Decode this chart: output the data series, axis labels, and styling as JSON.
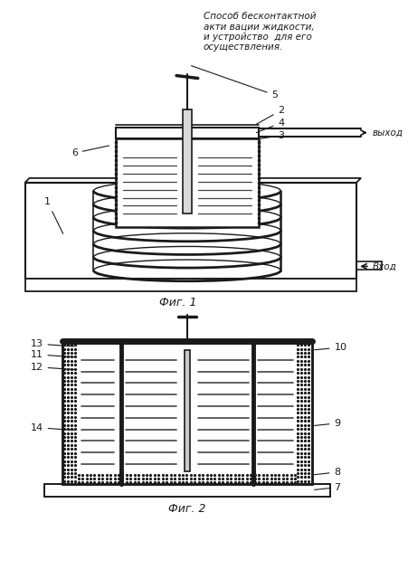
{
  "title_text": "Способ бесконтактной\nакти вации жидкости,\nи устройство  для его\nосуществления.",
  "fig1_label": "Фиг. 1",
  "fig2_label": "Фиг. 2",
  "vyhod_label": "выход",
  "vhod_label": "Вход",
  "bg_color": "#ffffff",
  "line_color": "#1a1a1a",
  "fig_width": 4.52,
  "fig_height": 6.4,
  "dpi": 100
}
